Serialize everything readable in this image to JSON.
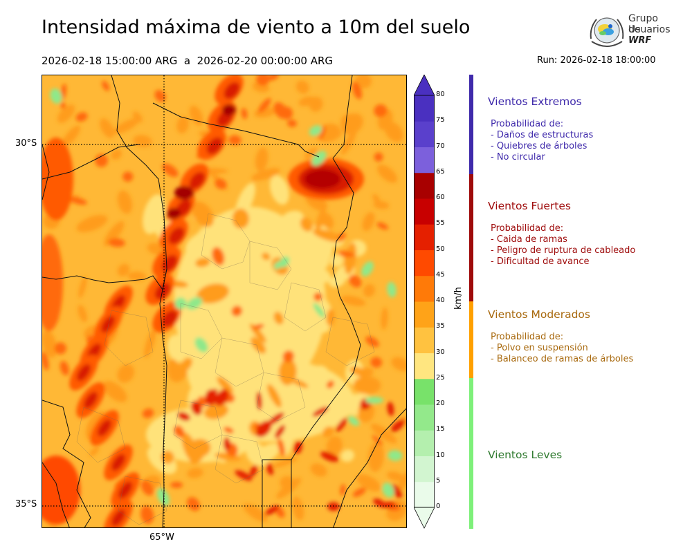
{
  "title": "Intensidad máxima de viento a 10m del suelo",
  "period": "2026-02-18 15:00:00 ARG  a  2026-02-20 00:00:00 ARG",
  "run": "Run: 2026-02-18 18:00:00",
  "logo": {
    "line1": "Grupo de",
    "line2": "Usuarios",
    "line3": "WRF",
    "icon": "globe-emblem-icon"
  },
  "map": {
    "lat_labels": [
      "30°S",
      "35°S"
    ],
    "lon_labels": [
      "65°W"
    ],
    "grid_lines": "dotted"
  },
  "colorbar": {
    "unit": "km/h",
    "ticks": [
      "0",
      "5",
      "10",
      "15",
      "20",
      "25",
      "30",
      "35",
      "40",
      "45",
      "50",
      "55",
      "60",
      "65",
      "70",
      "75",
      "80"
    ],
    "colors": [
      "#eafbea",
      "#d2f5d0",
      "#b4efae",
      "#93e98b",
      "#78e26a",
      "#ffe680",
      "#ffc240",
      "#ffa318",
      "#ff7a08",
      "#ff4a00",
      "#e52000",
      "#c80000",
      "#a80000",
      "#7c60dc",
      "#5a40cc",
      "#4a30c0"
    ],
    "extend": "both"
  },
  "categories": [
    {
      "title": "Vientos Extremos",
      "color": "#3f2aab",
      "bar_color": "#3f2aab",
      "lines": [
        "Probabilidad de:",
        "- Daños de estructuras",
        "- Quiebres de árboles",
        "- No circular"
      ]
    },
    {
      "title": "Vientos Fuertes",
      "color": "#9e0a0a",
      "bar_color": "#9e0a0a",
      "lines": [
        "Probabilidad de:",
        "- Caida de ramas",
        "- Peligro de ruptura de cableado",
        "- Dificultad de avance"
      ]
    },
    {
      "title": "Vientos Moderados",
      "color": "#a8690e",
      "bar_color": "#ffa000",
      "lines": [
        "Probabilidad de:",
        "- Polvo en suspensión",
        "- Balanceo de ramas de árboles"
      ]
    },
    {
      "title": "Vientos Leves",
      "color": "#2f7a2f",
      "bar_color": "#7ef07a",
      "lines": []
    }
  ]
}
